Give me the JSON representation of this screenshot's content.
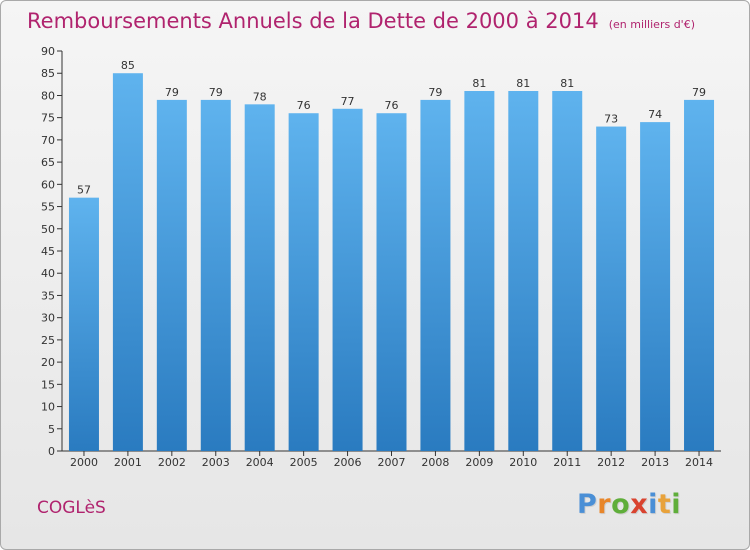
{
  "chart_data": {
    "type": "bar",
    "title": "Remboursements Annuels de la Dette de 2000 à 2014",
    "unit_label": "(en milliers d'€)",
    "categories": [
      "2000",
      "2001",
      "2002",
      "2003",
      "2004",
      "2005",
      "2006",
      "2007",
      "2008",
      "2009",
      "2010",
      "2011",
      "2012",
      "2013",
      "2014"
    ],
    "values": [
      57,
      85,
      79,
      79,
      78,
      76,
      77,
      76,
      79,
      81,
      81,
      81,
      73,
      74,
      79
    ],
    "y_ticks": [
      0,
      5,
      10,
      15,
      20,
      25,
      30,
      35,
      40,
      45,
      50,
      55,
      60,
      65,
      70,
      75,
      80,
      85,
      90
    ],
    "ylim": [
      0,
      90
    ],
    "grid": false,
    "xlabel": "",
    "ylabel": ""
  },
  "footer": {
    "commune": "COGLèS",
    "logo": [
      "P",
      "r",
      "o",
      "x",
      "i",
      "t",
      "i"
    ]
  },
  "colors": {
    "title": "#b0236e",
    "bar_top": "#5fb3ee",
    "bar_bottom": "#2a7bc0",
    "axis": "#333333",
    "text": "#333333",
    "logo": [
      "#4a8fd6",
      "#e8862a",
      "#5fae3a",
      "#d9432f",
      "#4a8fd6",
      "#e8a23a",
      "#5fae3a"
    ]
  }
}
